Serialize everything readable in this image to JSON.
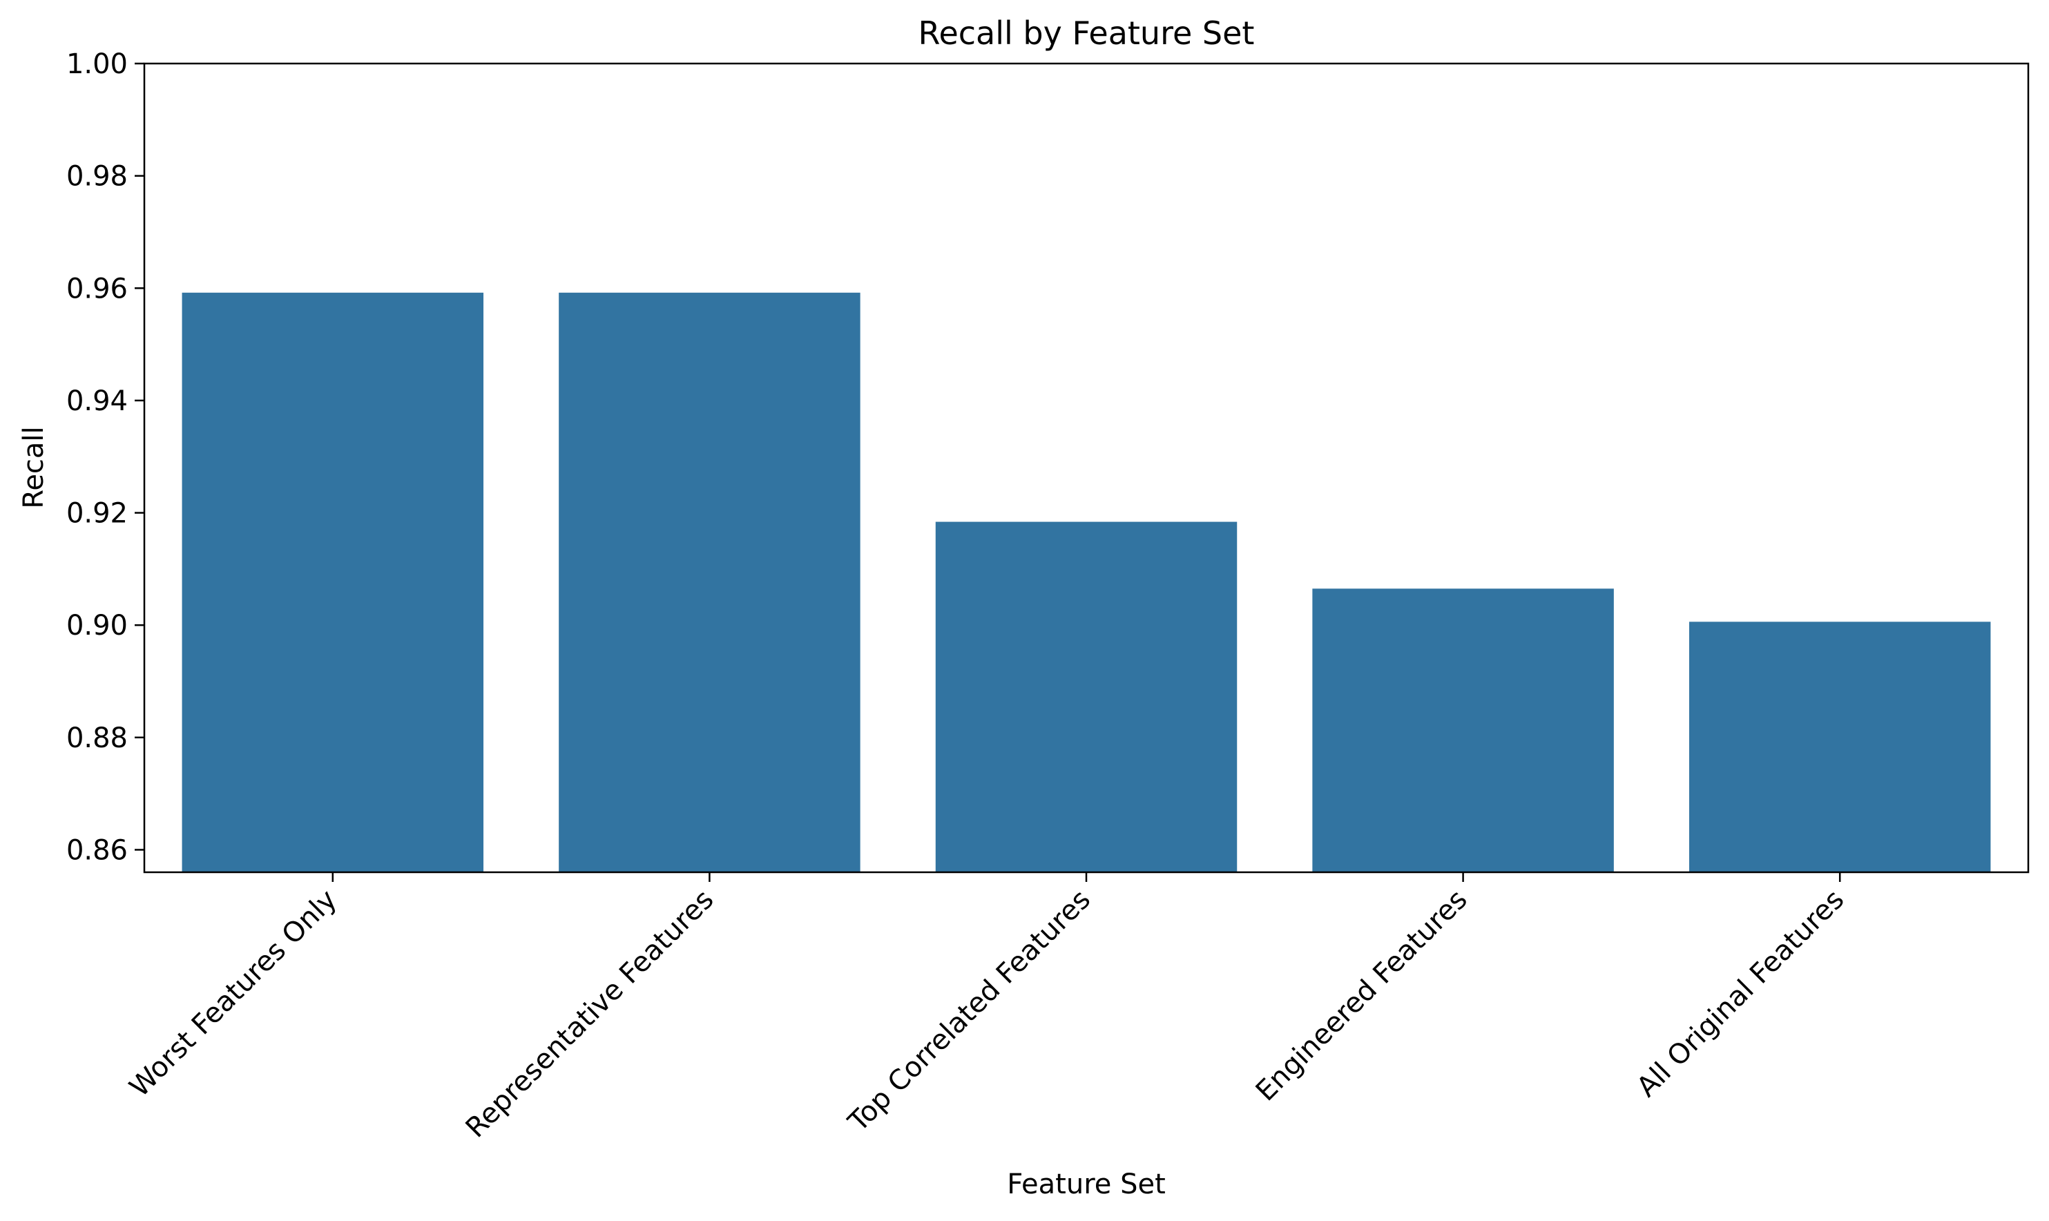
{
  "chart_data": {
    "type": "bar",
    "title": "Recall by Feature Set",
    "xlabel": "Feature Set",
    "ylabel": "Recall",
    "categories": [
      "Worst Features Only",
      "Representative Features",
      "Top Correlated Features",
      "Engineered Features",
      "All Original Features"
    ],
    "values": [
      0.9592,
      0.9592,
      0.9184,
      0.9065,
      0.9006
    ],
    "ylim": [
      0.856,
      1.0
    ],
    "yticks": [
      0.86,
      0.88,
      0.9,
      0.92,
      0.94,
      0.96,
      0.98,
      1.0
    ],
    "ytick_labels": [
      "0.86",
      "0.88",
      "0.90",
      "0.92",
      "0.94",
      "0.96",
      "0.98",
      "1.00"
    ],
    "grid": false,
    "legend": "none",
    "bar_color": "#3274a1"
  }
}
